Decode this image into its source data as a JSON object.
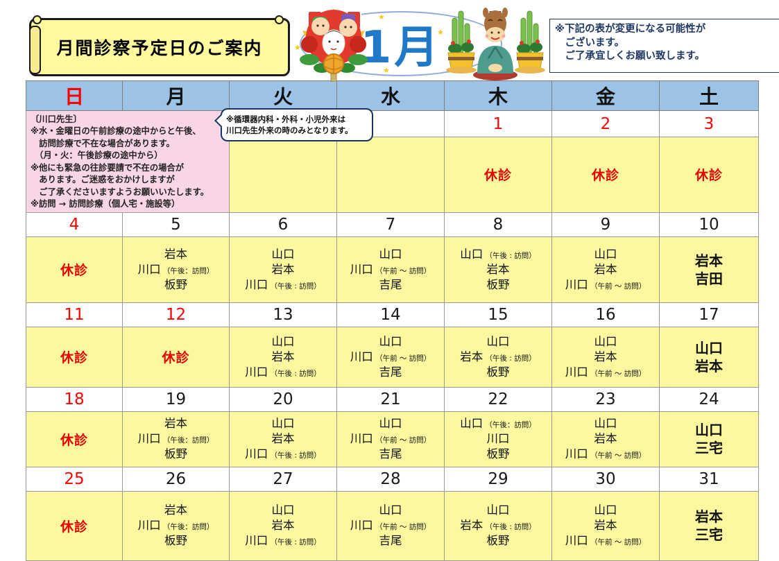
{
  "banner_title": "月間診察予定日のご案内",
  "month_label": "1月",
  "notice_lines": [
    "※下記の表が変更になる可能性が",
    "　ございます。",
    "　ご了承宜しくお願い致します。"
  ],
  "bubble_lines": [
    "※循環器内科・外科・小児外来は",
    "川口先生外来の時のみとなります。"
  ],
  "pink_note_lines": [
    "〔川口先生〕",
    "※水・金曜日の午前診療の途中からと午後、",
    "　訪問診療で不在な場合があります。",
    "　（月・火：午後診療の途中から）",
    "※他にも緊急の往診要請で不在の場合が",
    "　あります。ご迷惑をおかけしますが",
    "　ご了承くださいますようお願いいたします。",
    "※訪問 → 訪問診療（個人宅・施設等）"
  ],
  "closed_label": "休診",
  "weekday_headers": [
    {
      "label": "日",
      "red": true
    },
    {
      "label": "月",
      "red": false
    },
    {
      "label": "火",
      "red": false
    },
    {
      "label": "水",
      "red": false
    },
    {
      "label": "木",
      "red": false
    },
    {
      "label": "金",
      "red": false
    },
    {
      "label": "土",
      "red": false
    }
  ],
  "decorations": {
    "left": "kumade-new-year-charm",
    "right": "bowing-horse-with-kadomatsu"
  },
  "colors": {
    "header_bg": "#9CC3E6",
    "cell_yellow": "#FBF8A0",
    "note_pink": "#F9D6E6",
    "holiday_red": "#FF0000",
    "closed_red": "#E60000",
    "notice_navy": "#1F3864",
    "month_blue": "#1F78C8",
    "banner_yellow": "#FFFB9E"
  },
  "weeks": [
    {
      "days": [
        {
          "pink": true
        },
        {
          "pink": true
        },
        {
          "date": "",
          "staff": []
        },
        {
          "date": "",
          "staff": []
        },
        {
          "date": "1",
          "red": true,
          "closed": true
        },
        {
          "date": "2",
          "red": true,
          "closed": true
        },
        {
          "date": "3",
          "red": true,
          "closed": true
        }
      ]
    },
    {
      "days": [
        {
          "date": "4",
          "red": true,
          "closed": true
        },
        {
          "date": "5",
          "staff": [
            {
              "n": "岩本"
            },
            {
              "n": "川口",
              "s": "（午後：訪問）"
            },
            {
              "n": "板野"
            }
          ]
        },
        {
          "date": "6",
          "staff": [
            {
              "n": "山口"
            },
            {
              "n": "岩本"
            },
            {
              "n": "川口",
              "s": "（午後 : 訪問）"
            }
          ]
        },
        {
          "date": "7",
          "staff": [
            {
              "n": "山口"
            },
            {
              "n": "川口",
              "s": "（午前 ～ 訪問）"
            },
            {
              "n": "吉尾"
            }
          ]
        },
        {
          "date": "8",
          "staff": [
            {
              "n": "山口",
              "s": "（午後 : 訪問）"
            },
            {
              "n": "岩本"
            },
            {
              "n": "板野"
            }
          ]
        },
        {
          "date": "9",
          "staff": [
            {
              "n": "山口"
            },
            {
              "n": "岩本"
            },
            {
              "n": "川口",
              "s": "（午前 ～ 訪問）"
            }
          ]
        },
        {
          "date": "10",
          "big": true,
          "staff": [
            {
              "n": "岩本"
            },
            {
              "n": "吉田"
            }
          ]
        }
      ]
    },
    {
      "days": [
        {
          "date": "11",
          "red": true,
          "closed": true
        },
        {
          "date": "12",
          "red": true,
          "closed": true
        },
        {
          "date": "13",
          "staff": [
            {
              "n": "山口"
            },
            {
              "n": "岩本"
            },
            {
              "n": "川口",
              "s": "（午後 : 訪問）"
            }
          ]
        },
        {
          "date": "14",
          "staff": [
            {
              "n": "山口"
            },
            {
              "n": "川口",
              "s": "（午前 ～ 訪問）"
            },
            {
              "n": "吉尾"
            }
          ]
        },
        {
          "date": "15",
          "staff": [
            {
              "n": "山口"
            },
            {
              "n": "岩本",
              "s": "（午後 : 訪問）"
            },
            {
              "n": "板野"
            }
          ]
        },
        {
          "date": "16",
          "staff": [
            {
              "n": "山口"
            },
            {
              "n": "岩本"
            },
            {
              "n": "川口",
              "s": "（午前 ～ 訪問）"
            }
          ]
        },
        {
          "date": "17",
          "big": true,
          "staff": [
            {
              "n": "山口"
            },
            {
              "n": "岩本"
            }
          ]
        }
      ]
    },
    {
      "days": [
        {
          "date": "18",
          "red": true,
          "closed": true
        },
        {
          "date": "19",
          "staff": [
            {
              "n": "岩本"
            },
            {
              "n": "川口",
              "s": "（午後：訪問）"
            },
            {
              "n": "板野"
            }
          ]
        },
        {
          "date": "20",
          "staff": [
            {
              "n": "山口"
            },
            {
              "n": "岩本"
            },
            {
              "n": "川口",
              "s": "（午後 : 訪問）"
            }
          ]
        },
        {
          "date": "21",
          "staff": [
            {
              "n": "山口"
            },
            {
              "n": "川口",
              "s": "（午前 ～ 訪問）"
            },
            {
              "n": "吉尾"
            }
          ]
        },
        {
          "date": "22",
          "staff": [
            {
              "n": "山口",
              "s": "（午後：訪問）"
            },
            {
              "n": "川口"
            },
            {
              "n": "板野"
            }
          ]
        },
        {
          "date": "23",
          "staff": [
            {
              "n": "山口"
            },
            {
              "n": "岩本"
            },
            {
              "n": "川口",
              "s": "（午前 ～ 訪問）"
            }
          ]
        },
        {
          "date": "24",
          "big": true,
          "staff": [
            {
              "n": "山口"
            },
            {
              "n": "三宅"
            }
          ]
        }
      ]
    },
    {
      "days": [
        {
          "date": "25",
          "red": true,
          "closed": true
        },
        {
          "date": "26",
          "staff": [
            {
              "n": "岩本"
            },
            {
              "n": "川口",
              "s": "（午後：訪問）"
            },
            {
              "n": "板野"
            }
          ]
        },
        {
          "date": "27",
          "staff": [
            {
              "n": "山口"
            },
            {
              "n": "岩本"
            },
            {
              "n": "川口",
              "s": "（午後 : 訪問）"
            }
          ]
        },
        {
          "date": "28",
          "staff": [
            {
              "n": "山口"
            },
            {
              "n": "川口",
              "s": "（午前 ～ 訪問）"
            },
            {
              "n": "吉尾"
            }
          ]
        },
        {
          "date": "29",
          "staff": [
            {
              "n": "山口"
            },
            {
              "n": "岩本",
              "s": "（午後 : 訪問）"
            },
            {
              "n": "板野"
            }
          ]
        },
        {
          "date": "30",
          "staff": [
            {
              "n": "山口"
            },
            {
              "n": "岩本"
            },
            {
              "n": "川口",
              "s": "（午前 ～ 訪問）"
            }
          ]
        },
        {
          "date": "31",
          "big": true,
          "staff": [
            {
              "n": "岩本"
            },
            {
              "n": "三宅"
            }
          ]
        }
      ]
    }
  ]
}
